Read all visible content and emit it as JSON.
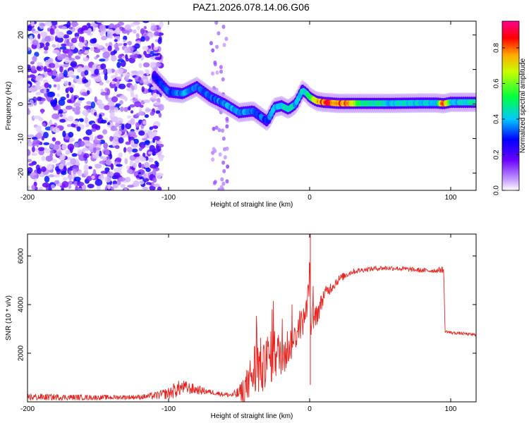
{
  "title": "PAZ1.2026.078.14.06.G06",
  "chart_data": [
    {
      "type": "heatmap",
      "xlabel": "Height of straight line (km)",
      "ylabel": "Frequency (Hz)",
      "xlim": [
        -200,
        118
      ],
      "ylim": [
        -25,
        24
      ],
      "x_ticks": [
        -200,
        -100,
        0,
        100
      ],
      "y_ticks": [
        -20,
        -10,
        0,
        10,
        20
      ],
      "colorbar": {
        "label": "Normalized spectral amplitude",
        "range": [
          0.0,
          0.95
        ],
        "ticks": [
          0.0,
          0.2,
          0.4,
          0.6,
          0.8
        ],
        "colors": [
          "#ffffff",
          "#b066ff",
          "#5a00ff",
          "#0000ff",
          "#00ffff",
          "#00ff00",
          "#ffff00",
          "#ff0000",
          "#ff00a0"
        ]
      },
      "noise_region_x": [
        -200,
        -105
      ],
      "ridge": {
        "x": [
          -110,
          -100,
          -90,
          -80,
          -70,
          -60,
          -50,
          -40,
          -30,
          -25,
          -20,
          -15,
          -10,
          -5,
          -2,
          0,
          5,
          10,
          20,
          40,
          60,
          80,
          90,
          95,
          100,
          110,
          118
        ],
        "y": [
          8,
          3.5,
          3,
          5,
          2,
          0,
          -2.5,
          -2,
          -5,
          -1,
          -0.5,
          -1.5,
          0,
          4,
          3,
          2,
          0.8,
          0.5,
          0.2,
          0.2,
          0.2,
          0.3,
          0.3,
          0.1,
          0.5,
          0.5,
          0.5
        ],
        "amplitude": [
          0.3,
          0.35,
          0.4,
          0.4,
          0.35,
          0.4,
          0.4,
          0.35,
          0.35,
          0.4,
          0.45,
          0.5,
          0.4,
          0.45,
          0.45,
          0.55,
          0.75,
          0.85,
          0.9,
          0.5,
          0.45,
          0.45,
          0.4,
          0.9,
          0.45,
          0.45,
          0.45
        ]
      }
    },
    {
      "type": "line",
      "xlabel": "Height of straight line (km)",
      "ylabel": "SNR (10 * v/v)",
      "xlim": [
        -200,
        118
      ],
      "ylim": [
        0,
        6900
      ],
      "x_ticks": [
        -200,
        -100,
        0,
        100
      ],
      "y_ticks": [
        2000,
        4000,
        6000
      ],
      "series": [
        {
          "name": "SNR",
          "color": "#e8231e",
          "x": [
            -200,
            -150,
            -120,
            -110,
            -100,
            -95,
            -90,
            -85,
            -80,
            -75,
            -70,
            -65,
            -60,
            -55,
            -50,
            -45,
            -42,
            -38,
            -35,
            -32,
            -30,
            -28,
            -25,
            -22,
            -20,
            -18,
            -15,
            -12,
            -10,
            -8,
            -5,
            -3,
            -2,
            -1,
            0,
            1,
            2,
            3,
            5,
            8,
            10,
            15,
            20,
            25,
            30,
            40,
            50,
            60,
            70,
            80,
            90,
            95,
            96,
            100,
            110,
            118
          ],
          "y": [
            200,
            180,
            200,
            250,
            350,
            500,
            600,
            550,
            500,
            450,
            400,
            350,
            300,
            280,
            350,
            600,
            1000,
            1400,
            1500,
            1300,
            1700,
            1800,
            2000,
            1900,
            2100,
            2000,
            2300,
            2500,
            2700,
            3000,
            3300,
            3500,
            3800,
            4500,
            5400,
            2800,
            3300,
            3400,
            3600,
            4000,
            4400,
            4700,
            5000,
            5200,
            5350,
            5450,
            5500,
            5500,
            5450,
            5400,
            5400,
            5450,
            2900,
            2850,
            2800,
            2750
          ],
          "noise_amplitude": [
            150,
            100,
            100,
            150,
            250,
            350,
            300,
            250,
            200,
            150,
            100,
            100,
            100,
            100,
            300,
            700,
            900,
            1400,
            1200,
            1000,
            1200,
            1100,
            1100,
            1000,
            1000,
            1000,
            800,
            700,
            600,
            600,
            600,
            600,
            600,
            700,
            600,
            400,
            700,
            700,
            500,
            400,
            300,
            250,
            200,
            150,
            120,
            100,
            100,
            100,
            100,
            100,
            100,
            150,
            60,
            60,
            60,
            60
          ]
        }
      ]
    }
  ]
}
